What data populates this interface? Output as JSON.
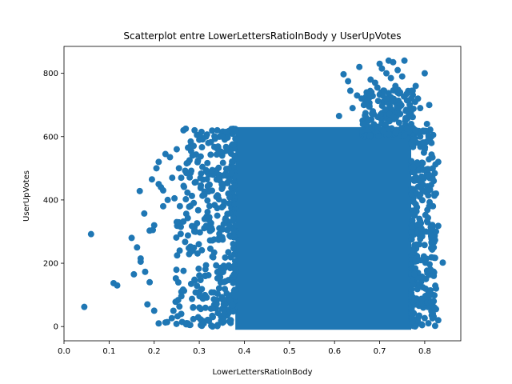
{
  "chart_data": {
    "type": "scatter",
    "title": "Scatterplot entre LowerLettersRatioInBody y UserUpVotes",
    "xlabel": "LowerLettersRatioInBody",
    "ylabel": "UserUpVotes",
    "xlim": [
      0.0,
      0.88
    ],
    "ylim": [
      -45,
      885
    ],
    "xticks": [
      0.0,
      0.1,
      0.2,
      0.3,
      0.4,
      0.5,
      0.6,
      0.7,
      0.8
    ],
    "xtick_labels": [
      "0.0",
      "0.1",
      "0.2",
      "0.3",
      "0.4",
      "0.5",
      "0.6",
      "0.7",
      "0.8"
    ],
    "yticks": [
      0,
      200,
      400,
      600,
      800
    ],
    "ytick_labels": [
      "0",
      "200",
      "400",
      "600",
      "800"
    ],
    "grid": false,
    "marker_color": "#1f77b4",
    "dense_region": {
      "description": "dense cluster of points",
      "x_range": [
        0.38,
        0.77
      ],
      "y_range": [
        0,
        625
      ]
    },
    "points": [
      {
        "x": 0.045,
        "y": 62
      },
      {
        "x": 0.06,
        "y": 292
      },
      {
        "x": 0.11,
        "y": 137
      },
      {
        "x": 0.118,
        "y": 130
      },
      {
        "x": 0.15,
        "y": 280
      },
      {
        "x": 0.155,
        "y": 165
      },
      {
        "x": 0.162,
        "y": 250
      },
      {
        "x": 0.168,
        "y": 428
      },
      {
        "x": 0.17,
        "y": 215
      },
      {
        "x": 0.17,
        "y": 205
      },
      {
        "x": 0.178,
        "y": 357
      },
      {
        "x": 0.18,
        "y": 173
      },
      {
        "x": 0.185,
        "y": 70
      },
      {
        "x": 0.19,
        "y": 303
      },
      {
        "x": 0.19,
        "y": 140
      },
      {
        "x": 0.195,
        "y": 465
      },
      {
        "x": 0.197,
        "y": 305
      },
      {
        "x": 0.2,
        "y": 320
      },
      {
        "x": 0.2,
        "y": 50
      },
      {
        "x": 0.205,
        "y": 500
      },
      {
        "x": 0.21,
        "y": 520
      },
      {
        "x": 0.21,
        "y": 450
      },
      {
        "x": 0.21,
        "y": 10
      },
      {
        "x": 0.215,
        "y": 440
      },
      {
        "x": 0.22,
        "y": 430
      },
      {
        "x": 0.22,
        "y": 380
      },
      {
        "x": 0.225,
        "y": 545
      },
      {
        "x": 0.23,
        "y": 400
      },
      {
        "x": 0.235,
        "y": 535
      },
      {
        "x": 0.24,
        "y": 470
      },
      {
        "x": 0.245,
        "y": 405
      },
      {
        "x": 0.25,
        "y": 560
      },
      {
        "x": 0.25,
        "y": 330
      },
      {
        "x": 0.255,
        "y": 500
      },
      {
        "x": 0.26,
        "y": 470
      },
      {
        "x": 0.26,
        "y": 40
      },
      {
        "x": 0.265,
        "y": 620
      },
      {
        "x": 0.27,
        "y": 625
      },
      {
        "x": 0.275,
        "y": 565
      },
      {
        "x": 0.28,
        "y": 5
      },
      {
        "x": 0.285,
        "y": 540
      },
      {
        "x": 0.29,
        "y": 455
      },
      {
        "x": 0.3,
        "y": 590
      },
      {
        "x": 0.3,
        "y": 60
      },
      {
        "x": 0.305,
        "y": 615
      },
      {
        "x": 0.31,
        "y": 10
      },
      {
        "x": 0.315,
        "y": 600
      },
      {
        "x": 0.32,
        "y": 580
      },
      {
        "x": 0.33,
        "y": 30
      },
      {
        "x": 0.34,
        "y": 620
      },
      {
        "x": 0.35,
        "y": 600
      },
      {
        "x": 0.36,
        "y": 615
      },
      {
        "x": 0.37,
        "y": 20
      },
      {
        "x": 0.61,
        "y": 665
      },
      {
        "x": 0.62,
        "y": 797
      },
      {
        "x": 0.63,
        "y": 775
      },
      {
        "x": 0.635,
        "y": 745
      },
      {
        "x": 0.64,
        "y": 690
      },
      {
        "x": 0.65,
        "y": 730
      },
      {
        "x": 0.655,
        "y": 820
      },
      {
        "x": 0.66,
        "y": 720
      },
      {
        "x": 0.665,
        "y": 700
      },
      {
        "x": 0.67,
        "y": 660
      },
      {
        "x": 0.675,
        "y": 650
      },
      {
        "x": 0.68,
        "y": 780
      },
      {
        "x": 0.685,
        "y": 680
      },
      {
        "x": 0.69,
        "y": 770
      },
      {
        "x": 0.695,
        "y": 755
      },
      {
        "x": 0.7,
        "y": 830
      },
      {
        "x": 0.705,
        "y": 815
      },
      {
        "x": 0.71,
        "y": 745
      },
      {
        "x": 0.715,
        "y": 800
      },
      {
        "x": 0.72,
        "y": 840
      },
      {
        "x": 0.725,
        "y": 785
      },
      {
        "x": 0.73,
        "y": 835
      },
      {
        "x": 0.735,
        "y": 760
      },
      {
        "x": 0.74,
        "y": 810
      },
      {
        "x": 0.745,
        "y": 705
      },
      {
        "x": 0.75,
        "y": 790
      },
      {
        "x": 0.755,
        "y": 840
      },
      {
        "x": 0.76,
        "y": 735
      },
      {
        "x": 0.765,
        "y": 670
      },
      {
        "x": 0.77,
        "y": 720
      },
      {
        "x": 0.78,
        "y": 760
      },
      {
        "x": 0.785,
        "y": 720
      },
      {
        "x": 0.79,
        "y": 690
      },
      {
        "x": 0.8,
        "y": 800
      },
      {
        "x": 0.81,
        "y": 700
      },
      {
        "x": 0.805,
        "y": 640
      },
      {
        "x": 0.815,
        "y": 580
      },
      {
        "x": 0.82,
        "y": 460
      },
      {
        "x": 0.825,
        "y": 420
      },
      {
        "x": 0.83,
        "y": 520
      },
      {
        "x": 0.825,
        "y": 300
      },
      {
        "x": 0.83,
        "y": 318
      },
      {
        "x": 0.84,
        "y": 202
      },
      {
        "x": 0.82,
        "y": 250
      },
      {
        "x": 0.82,
        "y": 160
      },
      {
        "x": 0.825,
        "y": 120
      },
      {
        "x": 0.82,
        "y": 80
      },
      {
        "x": 0.825,
        "y": 55
      },
      {
        "x": 0.83,
        "y": 20
      },
      {
        "x": 0.81,
        "y": 380
      },
      {
        "x": 0.8,
        "y": 560
      },
      {
        "x": 0.79,
        "y": 600
      },
      {
        "x": 0.78,
        "y": 620
      },
      {
        "x": 0.77,
        "y": 640
      }
    ]
  }
}
